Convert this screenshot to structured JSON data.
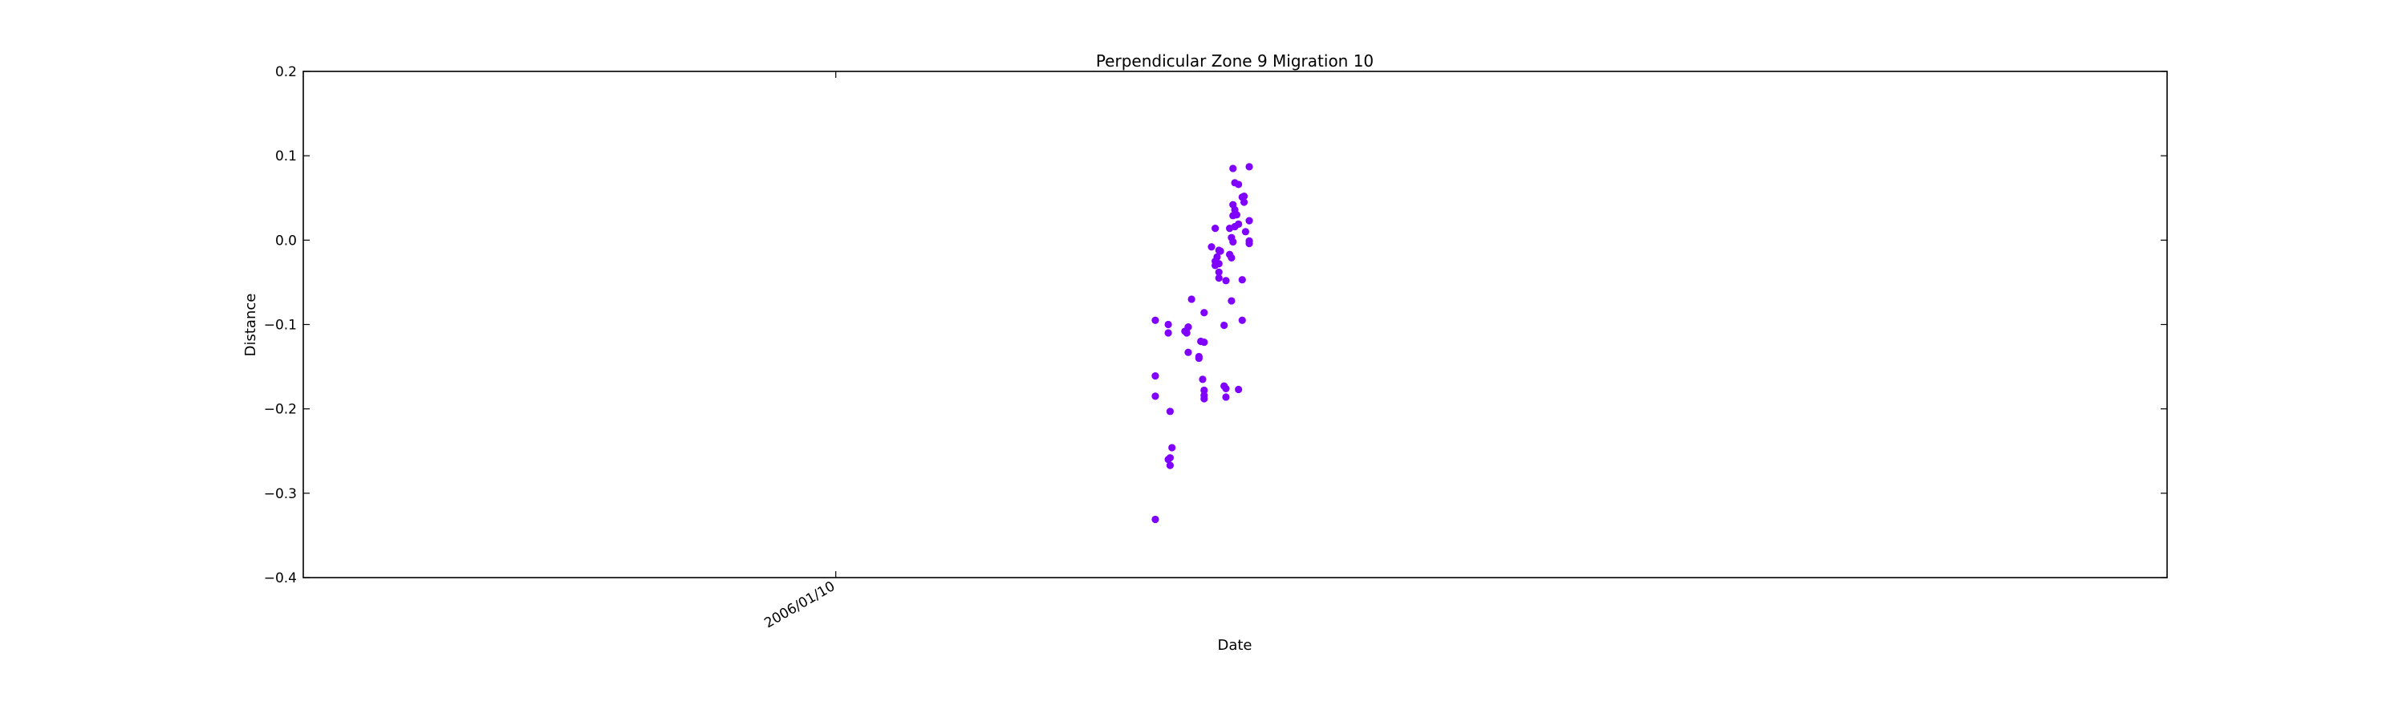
{
  "chart_data": {
    "type": "scatter",
    "title": "Perpendicular Zone 9 Migration 10",
    "xlabel": "Date",
    "ylabel": "Distance",
    "ylim": [
      -0.4,
      0.2
    ],
    "xlim": [
      "2006/01/09",
      "2006/01/12.5"
    ],
    "yticks": [
      "0.2",
      "0.1",
      "0.0",
      "−0.1",
      "−0.2",
      "−0.3",
      "−0.4"
    ],
    "xticks": [
      {
        "label": "2006/01/10",
        "date": "2006/01/10"
      }
    ],
    "grid": false,
    "legend": "none",
    "marker_color": "#7f00ff",
    "points": [
      {
        "x": "2006/01/10 14:24",
        "y": -0.095
      },
      {
        "x": "2006/01/10 14:24",
        "y": -0.161
      },
      {
        "x": "2006/01/10 14:24",
        "y": -0.185
      },
      {
        "x": "2006/01/10 14:24",
        "y": -0.331
      },
      {
        "x": "2006/01/10 14:59",
        "y": -0.1
      },
      {
        "x": "2006/01/10 14:59",
        "y": -0.11
      },
      {
        "x": "2006/01/10 15:04",
        "y": -0.203
      },
      {
        "x": "2006/01/10 14:59",
        "y": -0.26
      },
      {
        "x": "2006/01/10 15:04",
        "y": -0.258
      },
      {
        "x": "2006/01/10 15:04",
        "y": -0.267
      },
      {
        "x": "2006/01/10 15:09",
        "y": -0.246
      },
      {
        "x": "2006/01/10 15:44",
        "y": -0.108
      },
      {
        "x": "2006/01/10 15:49",
        "y": -0.11
      },
      {
        "x": "2006/01/10 15:53",
        "y": -0.103
      },
      {
        "x": "2006/01/10 15:53",
        "y": -0.133
      },
      {
        "x": "2006/01/10 16:02",
        "y": -0.07
      },
      {
        "x": "2006/01/10 16:22",
        "y": -0.138
      },
      {
        "x": "2006/01/10 16:22",
        "y": -0.14
      },
      {
        "x": "2006/01/10 16:27",
        "y": -0.12
      },
      {
        "x": "2006/01/10 16:36",
        "y": -0.121
      },
      {
        "x": "2006/01/10 16:32",
        "y": -0.165
      },
      {
        "x": "2006/01/10 16:36",
        "y": -0.178
      },
      {
        "x": "2006/01/10 16:36",
        "y": -0.184
      },
      {
        "x": "2006/01/10 16:36",
        "y": -0.188
      },
      {
        "x": "2006/01/10 16:36",
        "y": -0.086
      },
      {
        "x": "2006/01/10 16:56",
        "y": -0.008
      },
      {
        "x": "2006/01/10 17:06",
        "y": 0.014
      },
      {
        "x": "2006/01/10 17:06",
        "y": -0.025
      },
      {
        "x": "2006/01/10 17:06",
        "y": -0.03
      },
      {
        "x": "2006/01/10 17:11",
        "y": -0.02
      },
      {
        "x": "2006/01/10 17:16",
        "y": -0.012
      },
      {
        "x": "2006/01/10 17:16",
        "y": -0.028
      },
      {
        "x": "2006/01/10 17:16",
        "y": -0.038
      },
      {
        "x": "2006/01/10 17:20",
        "y": -0.013
      },
      {
        "x": "2006/01/10 17:16",
        "y": -0.045
      },
      {
        "x": "2006/01/10 17:30",
        "y": -0.101
      },
      {
        "x": "2006/01/10 17:35",
        "y": -0.048
      },
      {
        "x": "2006/01/10 17:30",
        "y": -0.173
      },
      {
        "x": "2006/01/10 17:35",
        "y": -0.176
      },
      {
        "x": "2006/01/10 17:35",
        "y": -0.186
      },
      {
        "x": "2006/01/10 17:45",
        "y": 0.014
      },
      {
        "x": "2006/01/10 17:45",
        "y": -0.017
      },
      {
        "x": "2006/01/10 17:50",
        "y": -0.021
      },
      {
        "x": "2006/01/10 17:50",
        "y": 0.003
      },
      {
        "x": "2006/01/10 17:54",
        "y": -0.002
      },
      {
        "x": "2006/01/10 17:54",
        "y": 0.029
      },
      {
        "x": "2006/01/10 17:54",
        "y": 0.042
      },
      {
        "x": "2006/01/10 17:59",
        "y": 0.036
      },
      {
        "x": "2006/01/10 17:54",
        "y": 0.085
      },
      {
        "x": "2006/01/10 17:59",
        "y": 0.068
      },
      {
        "x": "2006/01/10 17:59",
        "y": 0.016
      },
      {
        "x": "2006/01/10 18:04",
        "y": 0.03
      },
      {
        "x": "2006/01/10 18:09",
        "y": 0.019
      },
      {
        "x": "2006/01/10 18:09",
        "y": 0.066
      },
      {
        "x": "2006/01/10 17:50",
        "y": -0.072
      },
      {
        "x": "2006/01/10 18:09",
        "y": -0.177
      },
      {
        "x": "2006/01/10 18:19",
        "y": -0.047
      },
      {
        "x": "2006/01/10 18:19",
        "y": -0.095
      },
      {
        "x": "2006/01/10 18:19",
        "y": 0.051
      },
      {
        "x": "2006/01/10 18:24",
        "y": 0.045
      },
      {
        "x": "2006/01/10 18:24",
        "y": 0.052
      },
      {
        "x": "2006/01/10 18:28",
        "y": 0.01
      },
      {
        "x": "2006/01/10 18:38",
        "y": 0.087
      },
      {
        "x": "2006/01/10 18:38",
        "y": 0.023
      },
      {
        "x": "2006/01/10 18:38",
        "y": -0.001
      },
      {
        "x": "2006/01/10 18:38",
        "y": -0.004
      }
    ]
  }
}
